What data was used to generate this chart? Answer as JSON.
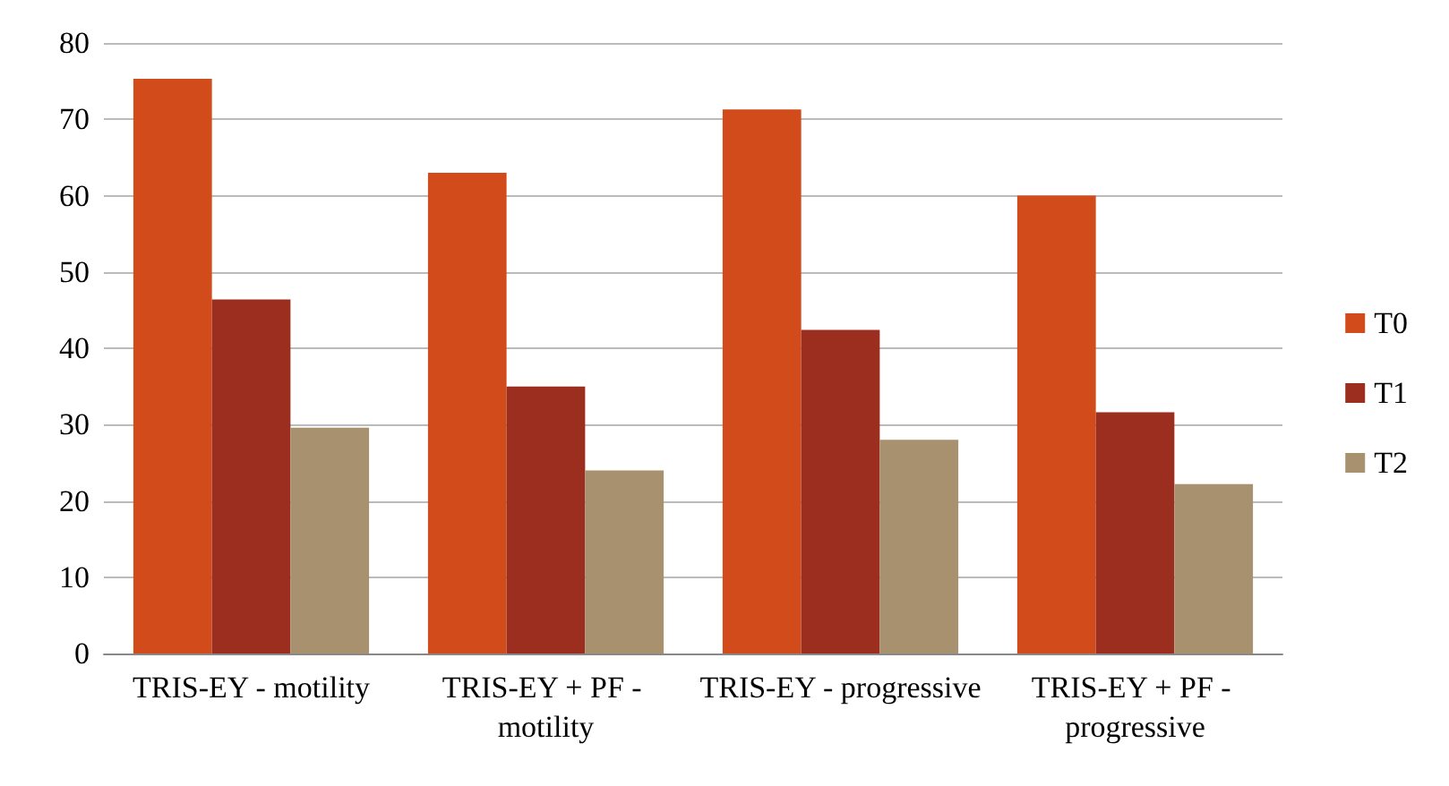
{
  "chart_data": {
    "type": "bar",
    "categories": [
      "TRIS-EY - motility",
      "TRIS-EY + PF - motility",
      "TRIS-EY - progressive",
      "TRIS-EY + PF - progressive"
    ],
    "series": [
      {
        "name": "T0",
        "color": "#d24b1b",
        "values": [
          75.3,
          63,
          71.3,
          60
        ]
      },
      {
        "name": "T1",
        "color": "#9c2e20",
        "values": [
          46.4,
          35,
          42.4,
          31.6
        ]
      },
      {
        "name": "T2",
        "color": "#a8916f",
        "values": [
          29.6,
          24,
          28,
          22.2
        ]
      }
    ],
    "ylim": [
      0,
      80
    ],
    "yticks": [
      0,
      10,
      20,
      30,
      40,
      50,
      60,
      70,
      80
    ],
    "grid": "y",
    "legend": "right"
  }
}
